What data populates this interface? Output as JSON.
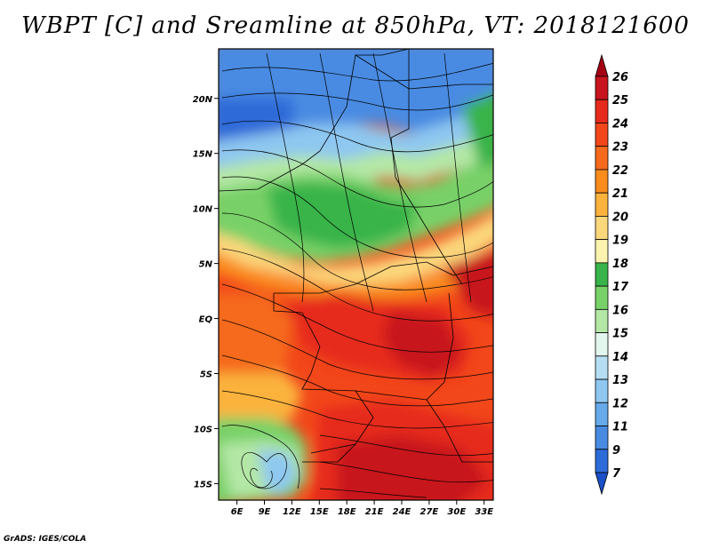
{
  "title": "WBPT [C] and Sreamline at 850hPa, VT: 2018121600",
  "credit": "GrADS: IGES/COLA",
  "map": {
    "lon_range": [
      4,
      34
    ],
    "lat_range": [
      -16.5,
      24.5
    ],
    "lat_ticks": [
      "20N",
      "15N",
      "10N",
      "5N",
      "EQ",
      "5S",
      "10S",
      "15S"
    ],
    "lat_tick_values": [
      20,
      15,
      10,
      5,
      0,
      -5,
      -10,
      -15
    ],
    "lon_ticks": [
      "6E",
      "9E",
      "12E",
      "15E",
      "18E",
      "21E",
      "24E",
      "27E",
      "30E",
      "33E"
    ],
    "lon_tick_values": [
      6,
      9,
      12,
      15,
      18,
      21,
      24,
      27,
      30,
      33
    ]
  },
  "colorbar": {
    "labels": [
      "26",
      "25",
      "24",
      "23",
      "22",
      "21",
      "20",
      "19",
      "18",
      "17",
      "16",
      "15",
      "14",
      "13",
      "12",
      "11",
      "9",
      "7"
    ],
    "colors": [
      "#a40014",
      "#c7141e",
      "#e62b1c",
      "#f2471a",
      "#f56a1c",
      "#fa8c1e",
      "#fbb33d",
      "#fbd77c",
      "#fbf3ae",
      "#38b44a",
      "#78d168",
      "#b4e7a6",
      "#e4f7ef",
      "#b6def3",
      "#8ec7f0",
      "#66aaea",
      "#4a8be2",
      "#2d6bd8",
      "#1a50c8"
    ]
  }
}
